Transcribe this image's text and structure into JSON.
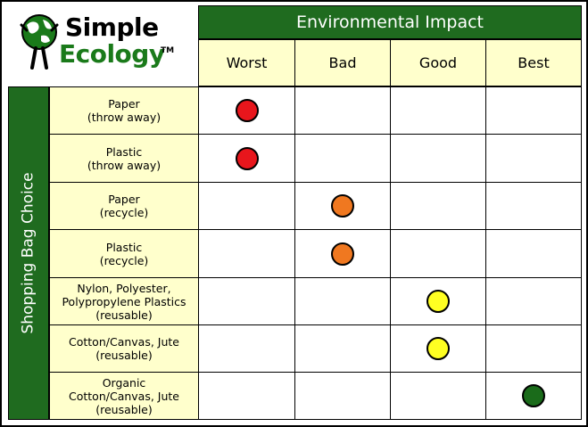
{
  "logo": {
    "line1": "Simple",
    "line2": "Ecology",
    "tm": "TM"
  },
  "header": {
    "title": "Environmental Impact"
  },
  "columns": [
    "Worst",
    "Bad",
    "Good",
    "Best"
  ],
  "side_label": "Shopping Bag Choice",
  "colors": {
    "header_green": "#1f6b1f",
    "label_yellow": "#ffffcc",
    "worst": "#e8161c",
    "bad": "#f07820",
    "good": "#ffff22",
    "best": "#1a6b1a"
  },
  "rows": [
    {
      "label_l1": "Paper",
      "label_l2": "(throw away)",
      "label_l3": "",
      "rating": "Worst"
    },
    {
      "label_l1": "Plastic",
      "label_l2": "(throw away)",
      "label_l3": "",
      "rating": "Worst"
    },
    {
      "label_l1": "Paper",
      "label_l2": "(recycle)",
      "label_l3": "",
      "rating": "Bad"
    },
    {
      "label_l1": "Plastic",
      "label_l2": "(recycle)",
      "label_l3": "",
      "rating": "Bad"
    },
    {
      "label_l1": "Nylon, Polyester,",
      "label_l2": "Polypropylene Plastics",
      "label_l3": "(reusable)",
      "rating": "Good"
    },
    {
      "label_l1": "Cotton/Canvas, Jute",
      "label_l2": "(reusable)",
      "label_l3": "",
      "rating": "Good"
    },
    {
      "label_l1": "Organic",
      "label_l2": "Cotton/Canvas, Jute",
      "label_l3": "(reusable)",
      "rating": "Best"
    }
  ]
}
